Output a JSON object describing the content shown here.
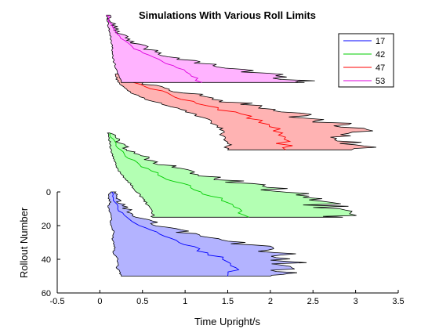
{
  "chart_data": {
    "type": "area",
    "title": "Simulations With Various Roll Limits",
    "xlabel": "Time Upright/s",
    "ylabel": "Rollout Number",
    "xlim": [
      -0.5,
      3.5
    ],
    "ylim": [
      60,
      0
    ],
    "x_ticks": [
      "-0.5",
      "0",
      "0.5",
      "1",
      "1.5",
      "2",
      "2.5",
      "3",
      "3.5"
    ],
    "y_ticks": [
      "0",
      "20",
      "40",
      "60"
    ],
    "grid": false,
    "legend_position": "top-right",
    "series": [
      {
        "name": "17",
        "color": "#0000ff",
        "fill": "#b3b3ff",
        "y_offset": 0,
        "min_at_y": [
          [
            0,
            0.12
          ],
          [
            3,
            0.1
          ],
          [
            6,
            0.12
          ],
          [
            9,
            0.1
          ],
          [
            12,
            0.12
          ],
          [
            15,
            0.14
          ],
          [
            18,
            0.12
          ],
          [
            21,
            0.14
          ],
          [
            24,
            0.16
          ],
          [
            27,
            0.15
          ],
          [
            30,
            0.16
          ],
          [
            33,
            0.18
          ],
          [
            36,
            0.16
          ],
          [
            39,
            0.2
          ],
          [
            42,
            0.22
          ],
          [
            45,
            0.2
          ],
          [
            48,
            0.24
          ],
          [
            50,
            0.25
          ]
        ],
        "max_at_y": [
          [
            0,
            0.16
          ],
          [
            3,
            0.18
          ],
          [
            6,
            0.22
          ],
          [
            9,
            0.3
          ],
          [
            12,
            0.35
          ],
          [
            15,
            0.45
          ],
          [
            18,
            0.6
          ],
          [
            21,
            0.8
          ],
          [
            24,
            1.0
          ],
          [
            27,
            1.3
          ],
          [
            30,
            1.6
          ],
          [
            33,
            1.9
          ],
          [
            36,
            2.05
          ],
          [
            39,
            2.2
          ],
          [
            42,
            2.25
          ],
          [
            45,
            2.2
          ],
          [
            48,
            2.1
          ],
          [
            50,
            2.0
          ]
        ],
        "mean_at_y": [
          [
            0,
            0.14
          ],
          [
            5,
            0.16
          ],
          [
            10,
            0.22
          ],
          [
            15,
            0.3
          ],
          [
            20,
            0.45
          ],
          [
            25,
            0.7
          ],
          [
            30,
            0.95
          ],
          [
            35,
            1.2
          ],
          [
            40,
            1.45
          ],
          [
            45,
            1.6
          ],
          [
            50,
            1.5
          ]
        ]
      },
      {
        "name": "42",
        "color": "#00cc00",
        "fill": "#b3ffb3",
        "y_offset": -35,
        "min_at_y": [
          [
            0,
            0.1
          ],
          [
            3,
            0.11
          ],
          [
            6,
            0.12
          ],
          [
            9,
            0.12
          ],
          [
            12,
            0.14
          ],
          [
            15,
            0.16
          ],
          [
            18,
            0.18
          ],
          [
            21,
            0.2
          ],
          [
            24,
            0.25
          ],
          [
            27,
            0.3
          ],
          [
            30,
            0.35
          ],
          [
            33,
            0.4
          ],
          [
            36,
            0.45
          ],
          [
            39,
            0.5
          ],
          [
            42,
            0.55
          ],
          [
            45,
            0.6
          ],
          [
            48,
            0.62
          ],
          [
            50,
            0.62
          ]
        ],
        "max_at_y": [
          [
            0,
            0.14
          ],
          [
            3,
            0.18
          ],
          [
            6,
            0.24
          ],
          [
            9,
            0.32
          ],
          [
            12,
            0.42
          ],
          [
            15,
            0.55
          ],
          [
            18,
            0.7
          ],
          [
            21,
            0.9
          ],
          [
            24,
            1.1
          ],
          [
            27,
            1.4
          ],
          [
            30,
            1.7
          ],
          [
            33,
            2.0
          ],
          [
            36,
            2.25
          ],
          [
            39,
            2.45
          ],
          [
            42,
            2.6
          ],
          [
            45,
            2.75
          ],
          [
            48,
            2.85
          ],
          [
            50,
            2.85
          ]
        ],
        "mean_at_y": [
          [
            0,
            0.12
          ],
          [
            5,
            0.16
          ],
          [
            10,
            0.24
          ],
          [
            15,
            0.35
          ],
          [
            20,
            0.5
          ],
          [
            25,
            0.7
          ],
          [
            30,
            0.95
          ],
          [
            35,
            1.2
          ],
          [
            40,
            1.45
          ],
          [
            45,
            1.65
          ],
          [
            50,
            1.75
          ]
        ]
      },
      {
        "name": "47",
        "color": "#ff0000",
        "fill": "#ffb3b3",
        "y_offset": -70,
        "min_at_y": [
          [
            0,
            0.18
          ],
          [
            3,
            0.2
          ],
          [
            6,
            0.24
          ],
          [
            9,
            0.3
          ],
          [
            12,
            0.4
          ],
          [
            15,
            0.55
          ],
          [
            18,
            0.75
          ],
          [
            21,
            0.95
          ],
          [
            24,
            1.1
          ],
          [
            27,
            1.25
          ],
          [
            30,
            1.35
          ],
          [
            33,
            1.42
          ],
          [
            36,
            1.45
          ],
          [
            39,
            1.48
          ],
          [
            42,
            1.5
          ],
          [
            45,
            1.5
          ]
        ],
        "max_at_y": [
          [
            0,
            0.25
          ],
          [
            3,
            0.35
          ],
          [
            6,
            0.55
          ],
          [
            9,
            0.8
          ],
          [
            12,
            1.1
          ],
          [
            15,
            1.4
          ],
          [
            18,
            1.7
          ],
          [
            21,
            2.0
          ],
          [
            24,
            2.3
          ],
          [
            27,
            2.55
          ],
          [
            30,
            2.75
          ],
          [
            33,
            2.9
          ],
          [
            36,
            2.98
          ],
          [
            39,
            3.0
          ],
          [
            42,
            2.98
          ],
          [
            45,
            2.95
          ]
        ],
        "mean_at_y": [
          [
            0,
            0.22
          ],
          [
            5,
            0.4
          ],
          [
            10,
            0.7
          ],
          [
            15,
            1.0
          ],
          [
            20,
            1.35
          ],
          [
            25,
            1.7
          ],
          [
            30,
            1.95
          ],
          [
            35,
            2.1
          ],
          [
            40,
            2.15
          ],
          [
            45,
            2.18
          ]
        ]
      },
      {
        "name": "53",
        "color": "#dd00dd",
        "fill": "#ffb3ff",
        "y_offset": -105,
        "min_at_y": [
          [
            0,
            0.08
          ],
          [
            3,
            0.09
          ],
          [
            6,
            0.1
          ],
          [
            9,
            0.11
          ],
          [
            12,
            0.12
          ],
          [
            15,
            0.13
          ],
          [
            18,
            0.15
          ],
          [
            21,
            0.14
          ],
          [
            24,
            0.15
          ],
          [
            27,
            0.16
          ],
          [
            30,
            0.18
          ],
          [
            33,
            0.2
          ],
          [
            36,
            0.22
          ],
          [
            40,
            0.25
          ]
        ],
        "max_at_y": [
          [
            0,
            0.1
          ],
          [
            3,
            0.12
          ],
          [
            6,
            0.16
          ],
          [
            9,
            0.2
          ],
          [
            12,
            0.26
          ],
          [
            15,
            0.35
          ],
          [
            18,
            0.48
          ],
          [
            21,
            0.62
          ],
          [
            24,
            0.8
          ],
          [
            27,
            1.05
          ],
          [
            30,
            1.35
          ],
          [
            33,
            1.7
          ],
          [
            36,
            2.05
          ],
          [
            39,
            2.35
          ],
          [
            40,
            2.4
          ]
        ],
        "mean_at_y": [
          [
            0,
            0.09
          ],
          [
            5,
            0.12
          ],
          [
            10,
            0.18
          ],
          [
            15,
            0.28
          ],
          [
            20,
            0.42
          ],
          [
            25,
            0.62
          ],
          [
            30,
            0.85
          ],
          [
            35,
            1.05
          ],
          [
            40,
            1.2
          ]
        ]
      }
    ]
  }
}
